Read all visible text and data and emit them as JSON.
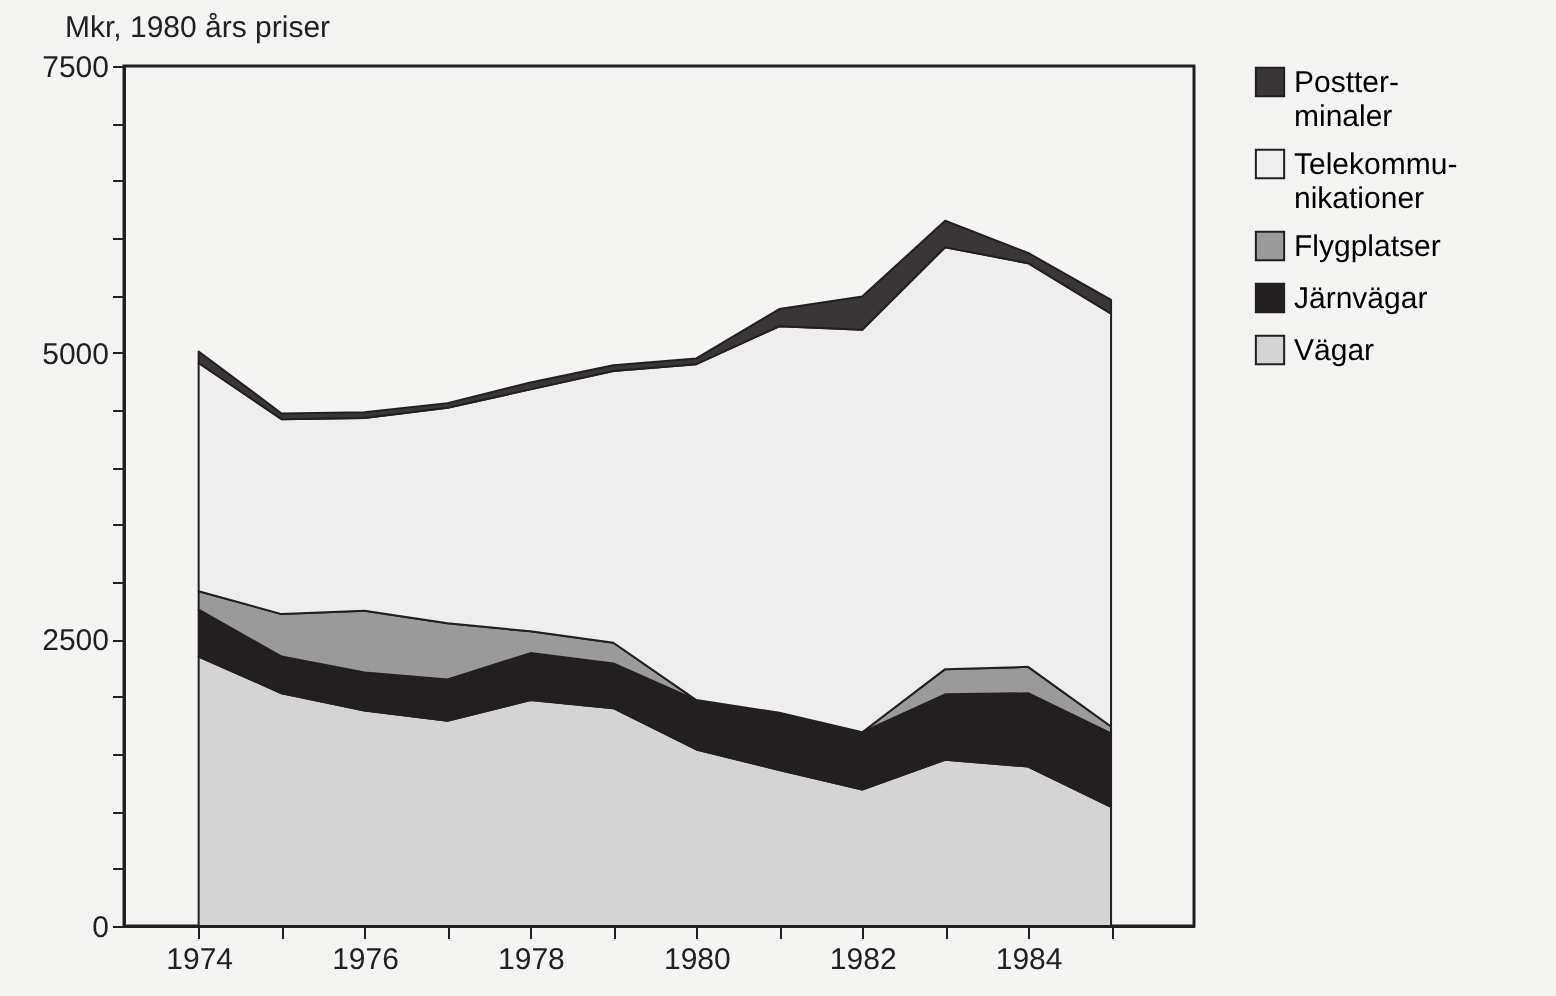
{
  "chart_data": {
    "type": "area",
    "stacked": true,
    "ylabel": "Mkr, 1980 års priser",
    "x": [
      1974,
      1975,
      1976,
      1977,
      1978,
      1979,
      1980,
      1981,
      1982,
      1983,
      1984,
      1985
    ],
    "xlim": [
      1973.1,
      1986
    ],
    "xticks": [
      1974,
      {
        "value": 1975,
        "label": null
      },
      1976,
      {
        "value": 1977,
        "label": null
      },
      1978,
      {
        "value": 1979,
        "label": null
      },
      1980,
      {
        "value": 1981,
        "label": null
      },
      1982,
      {
        "value": 1983,
        "label": null
      },
      1984,
      {
        "value": 1985,
        "label": null
      }
    ],
    "ylim": [
      0,
      7500
    ],
    "yticks": [
      0,
      {
        "value": 500,
        "label": null
      },
      {
        "value": 1000,
        "label": null
      },
      {
        "value": 1500,
        "label": null
      },
      {
        "value": 2000,
        "label": null
      },
      2500,
      {
        "value": 3000,
        "label": null
      },
      {
        "value": 3500,
        "label": null
      },
      {
        "value": 4000,
        "label": null
      },
      {
        "value": 4500,
        "label": null
      },
      5000,
      {
        "value": 5500,
        "label": null
      },
      {
        "value": 6000,
        "label": null
      },
      {
        "value": 6500,
        "label": null
      },
      {
        "value": 7000,
        "label": null
      },
      7500
    ],
    "legend": "right",
    "grid": false,
    "series": [
      {
        "name": "Vägar",
        "color": "#d4d4d4",
        "values": [
          2350,
          2030,
          1880,
          1790,
          1970,
          1900,
          1540,
          1360,
          1190,
          1450,
          1390,
          1040
        ]
      },
      {
        "name": "Järnvägar",
        "color": "#231f20",
        "values": [
          410,
          320,
          330,
          360,
          410,
          390,
          430,
          500,
          500,
          570,
          640,
          640
        ]
      },
      {
        "name": "Flygplatser",
        "color": "#9a9a9a",
        "values": [
          160,
          370,
          540,
          490,
          190,
          180,
          0,
          0,
          0,
          220,
          230,
          60
        ]
      },
      {
        "name": "Telekommu-\nnikationer",
        "color": "#eeeeee",
        "values": [
          1990,
          1700,
          1680,
          1880,
          2110,
          2370,
          2930,
          3370,
          3510,
          3680,
          3520,
          3600
        ]
      },
      {
        "name": "Postter-\nminaler",
        "color": "#3a3536",
        "values": [
          100,
          50,
          50,
          40,
          60,
          50,
          50,
          150,
          290,
          230,
          90,
          120
        ]
      }
    ]
  }
}
